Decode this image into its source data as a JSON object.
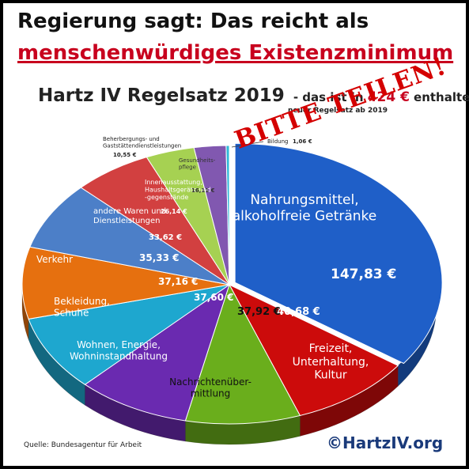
{
  "header": {
    "line1": "Regierung sagt: Das reicht als",
    "line2": "menschenwürdiges Existenzminimum"
  },
  "subtitle": {
    "main": "Hartz IV Regelsatz 2019",
    "pre": "- das ist in",
    "amount": "424 €",
    "post": "enthalten",
    "note": "neuer Regelsatz ab 2019"
  },
  "stamp": "BITTE TEILEN!",
  "source": "Quelle: Bundesagentur  für Arbeit",
  "copyright": "©HartzIV.org",
  "chart_data": {
    "type": "pie",
    "title": "Hartz IV Regelsatz 2019",
    "total": 424,
    "slices": [
      {
        "category": "Nahrungsmittel, alkoholfreie Getränke",
        "value": 147.83,
        "value_label": "147,83 €",
        "color": "#1f5fc8"
      },
      {
        "category": "Freizeit, Unterhaltung, Kultur",
        "value": 40.68,
        "value_label": "40,68 €",
        "color": "#cc0b0b"
      },
      {
        "category": "Nachrichtenübermittlung",
        "value": 37.92,
        "value_label": "37,92 €",
        "color": "#6aae1c"
      },
      {
        "category": "Wohnen, Energie, Wohninstandhaltung",
        "value": 37.6,
        "value_label": "37,60 €",
        "color": "#6a2ab0"
      },
      {
        "category": "Bekleidung, Schuhe",
        "value": 37.16,
        "value_label": "37,16 €",
        "color": "#1ea7cf"
      },
      {
        "category": "Verkehr",
        "value": 35.33,
        "value_label": "35,33 €",
        "color": "#e6700f"
      },
      {
        "category": "andere Waren und Dienstleistungen",
        "value": 33.62,
        "value_label": "33,62 €",
        "color": "#4c7fc8"
      },
      {
        "category": "Innenausstattung, Haushaltsgeräte und -gegenstände",
        "value": 26.14,
        "value_label": "26,14 €",
        "color": "#d24040"
      },
      {
        "category": "Gesundheitspflege",
        "value": 16.11,
        "value_label": "16,11 €",
        "color": "#a6d152"
      },
      {
        "category": "Beherbergungs- und Gaststättendienstleistungen",
        "value": 10.55,
        "value_label": "10,55 €",
        "color": "#8158b0"
      },
      {
        "category": "Bildung",
        "value": 1.06,
        "value_label": "1,06 €",
        "color": "#2fb9d8"
      }
    ]
  }
}
